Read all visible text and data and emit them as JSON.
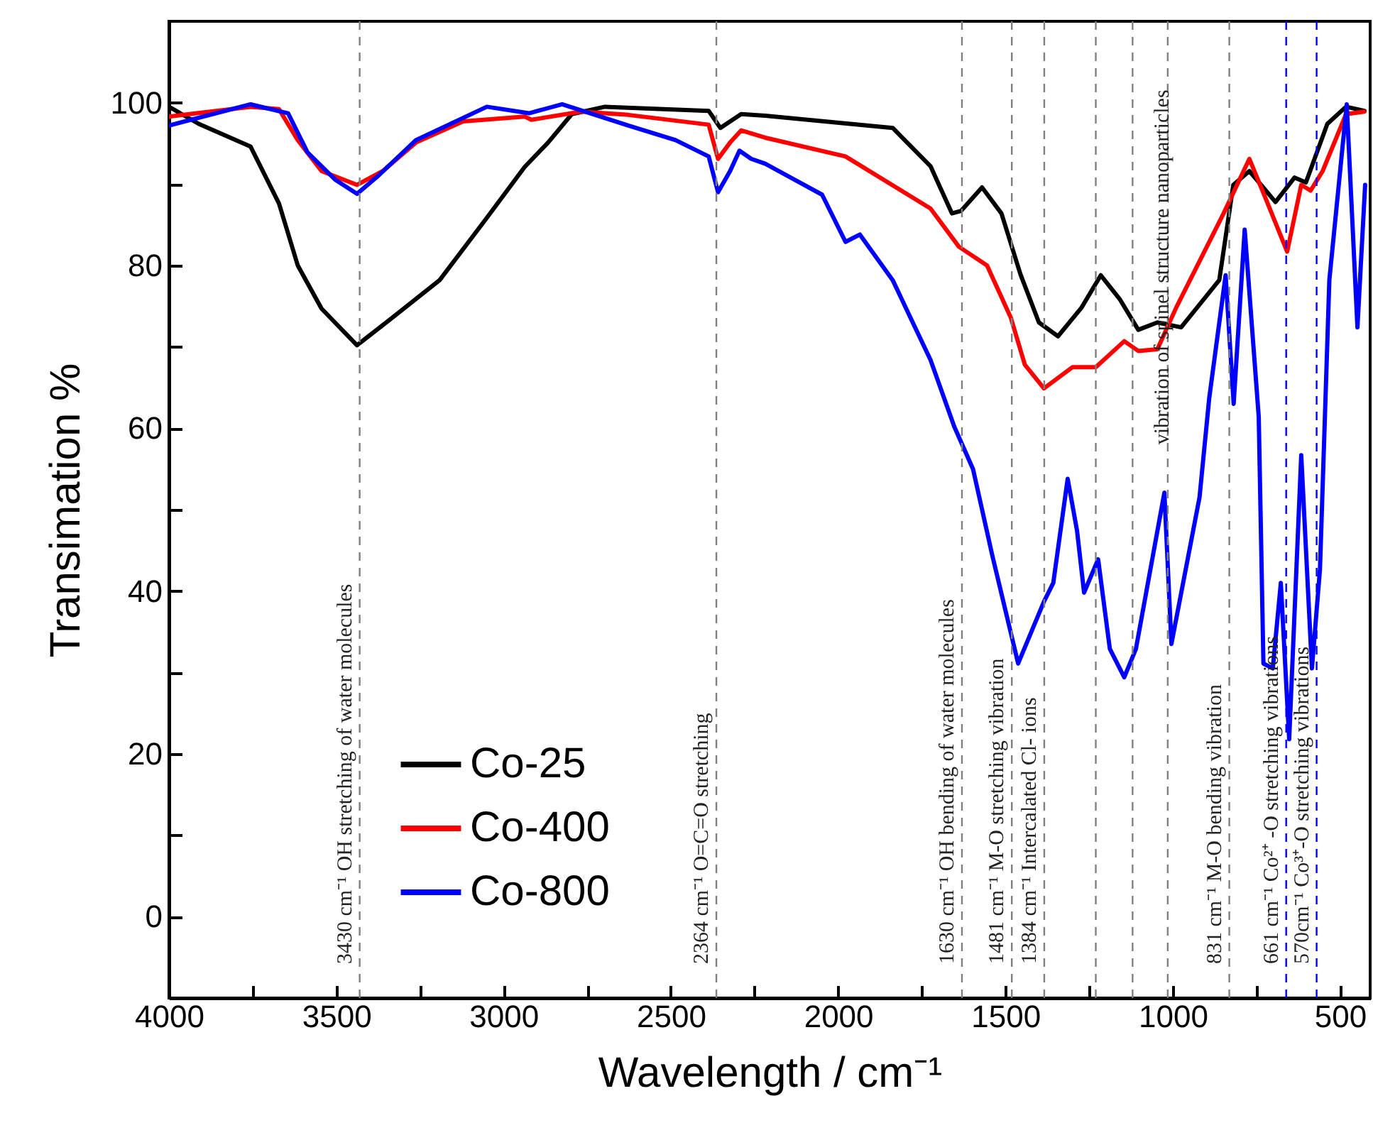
{
  "chart_data": {
    "type": "line",
    "xlabel": "Wavelength / cm⁻¹",
    "ylabel": "Transimation %",
    "xlim": [
      4000,
      410
    ],
    "ylim": [
      -10,
      110
    ],
    "xticks": [
      4000,
      {
        "value": 3750,
        "label": null
      },
      3500,
      {
        "value": 3250,
        "label": null
      },
      3000,
      {
        "value": 2750,
        "label": null
      },
      2500,
      {
        "value": 2250,
        "label": null
      },
      2000,
      {
        "value": 1750,
        "label": null
      },
      1500,
      {
        "value": 1250,
        "label": null
      },
      1000,
      {
        "value": 750,
        "label": null
      },
      500
    ],
    "yticks": [
      0,
      {
        "value": 10,
        "label": null
      },
      20,
      {
        "value": 30,
        "label": null
      },
      40,
      {
        "value": 50,
        "label": null
      },
      60,
      {
        "value": 70,
        "label": null
      },
      80,
      {
        "value": 90,
        "label": null
      },
      100
    ],
    "grid": false,
    "legend": "bottom left",
    "marker": "none",
    "line_style": "solid",
    "series": [
      {
        "name": "Co-25",
        "color": "#000000",
        "x": [
          4000,
          3911,
          3756,
          3671,
          3615,
          3544,
          3438,
          3332,
          3191,
          3051,
          2937,
          2867,
          2796,
          2697,
          2387,
          2352,
          2290,
          2218,
          1837,
          1724,
          1660,
          1633,
          1570,
          1512,
          1455,
          1400,
          1343,
          1273,
          1215,
          1159,
          1103,
          1046,
          975,
          861,
          819,
          771,
          693,
          636,
          602,
          538,
          482,
          427
        ],
        "values": [
          99.5,
          97.4,
          94.6,
          87.6,
          80,
          74.7,
          70.2,
          73.6,
          78.2,
          85.8,
          92.1,
          95.1,
          98.6,
          99.5,
          99,
          96.9,
          98.6,
          98.4,
          96.9,
          92.2,
          86.4,
          86.7,
          89.6,
          86.4,
          78.9,
          73,
          71.3,
          74.8,
          78.8,
          75.9,
          72.1,
          73,
          72.4,
          78.2,
          89.9,
          91.6,
          87.8,
          90.8,
          90.2,
          97.4,
          99.5,
          99
        ]
      },
      {
        "name": "Co-400",
        "color": "#ff0000",
        "x": [
          4000,
          3756,
          3671,
          3615,
          3544,
          3438,
          3361,
          3262,
          3121,
          2937,
          2917,
          2768,
          2627,
          2387,
          2359,
          2323,
          2290,
          2218,
          1978,
          1724,
          1639,
          1555,
          1484,
          1442,
          1385,
          1300,
          1230,
          1145,
          1103,
          1046,
          990,
          848,
          771,
          721,
          658,
          616,
          588,
          552,
          482,
          427
        ],
        "values": [
          98.3,
          99.5,
          99.2,
          95.4,
          91.6,
          89.9,
          91.6,
          95.1,
          97.7,
          98.3,
          97.9,
          98.9,
          98.5,
          97.3,
          93.1,
          95.1,
          96.6,
          95.7,
          93.4,
          87,
          82.3,
          80,
          73.6,
          67.8,
          64.9,
          67.5,
          67.5,
          70.7,
          69.5,
          69.7,
          74.8,
          86.4,
          93.1,
          88.1,
          81.7,
          89.9,
          89.2,
          91.6,
          98.6,
          98.9
        ]
      },
      {
        "name": "Co-800",
        "color": "#0000ff",
        "x": [
          4000,
          3756,
          3644,
          3586,
          3502,
          3438,
          3375,
          3262,
          3050,
          2924,
          2825,
          2627,
          2486,
          2387,
          2359,
          2323,
          2295,
          2260,
          2218,
          2048,
          1978,
          1935,
          1837,
          1724,
          1653,
          1597,
          1540,
          1462,
          1385,
          1357,
          1314,
          1286,
          1265,
          1223,
          1188,
          1145,
          1110,
          1025,
          1004,
          920,
          891,
          842,
          818,
          785,
          743,
          729,
          701,
          677,
          652,
          616,
          584,
          560,
          532,
          480,
          448,
          425
        ],
        "values": [
          97.2,
          99.8,
          98.7,
          93.9,
          90.5,
          88.8,
          91,
          95.4,
          99.5,
          98.7,
          99.8,
          97.2,
          95.4,
          93.4,
          89,
          91.6,
          94.1,
          93.1,
          92.5,
          88.7,
          82.9,
          83.8,
          78.2,
          68.4,
          60.2,
          55,
          44.5,
          31.1,
          38.7,
          41,
          53.8,
          47.4,
          39.8,
          43.9,
          32.9,
          29.4,
          32.9,
          52.1,
          33.5,
          51.5,
          63.7,
          78.8,
          63,
          84.4,
          61.4,
          31.1,
          30.5,
          41,
          21.8,
          56.7,
          30.5,
          42.7,
          78.2,
          99.8,
          72.4,
          89.9
        ]
      }
    ],
    "ref_lines": [
      {
        "axis": "x",
        "value": 3430,
        "label": "3430 cm⁻¹  OH stretching of water molecules",
        "color": "#808080",
        "line_style": "dashed"
      },
      {
        "axis": "x",
        "value": 2364,
        "label": "2364 cm⁻¹  O=C=O stretching",
        "color": "#808080",
        "line_style": "dashed"
      },
      {
        "axis": "x",
        "value": 1630,
        "label": "1630 cm⁻¹  OH bending of water molecules",
        "color": "#808080",
        "line_style": "dashed"
      },
      {
        "axis": "x",
        "value": 1481,
        "label": "1481 cm⁻¹  M-O stretching vibration",
        "color": "#808080",
        "line_style": "dashed"
      },
      {
        "axis": "x",
        "value": 1384,
        "label": "1384 cm⁻¹  Intercalated Cl- ions",
        "color": "#808080",
        "line_style": "dashed"
      },
      {
        "axis": "x",
        "value": 1230,
        "color": "#808080",
        "line_style": "dashed"
      },
      {
        "axis": "x",
        "value": 1120,
        "color": "#808080",
        "line_style": "dashed"
      },
      {
        "axis": "x",
        "value": 1015,
        "color": "#808080",
        "line_style": "dashed"
      },
      {
        "axis": "x",
        "value": 831,
        "label": "831 cm⁻¹ M-O bending vibration",
        "color": "#808080",
        "line_style": "dashed"
      },
      {
        "axis": "x",
        "value": 661,
        "label": "661 cm⁻¹ Co²⁺ -O stretching vibrations",
        "color": "#0000ff",
        "line_style": "dashed"
      },
      {
        "axis": "x",
        "value": 570,
        "label": "570cm⁻¹ Co³⁺-O stretching vibrations",
        "color": "#0000ff",
        "line_style": "dashed"
      }
    ],
    "annotations": [
      {
        "text": "vibration of spinel structure nanoparticles",
        "x": 1034,
        "y": 58
      }
    ]
  }
}
